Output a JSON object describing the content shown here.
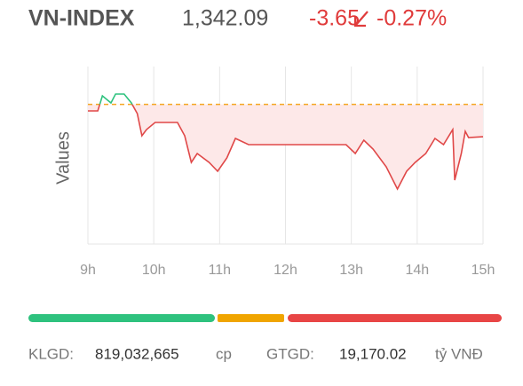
{
  "header": {
    "title": "VN-INDEX",
    "price": "1,342.09",
    "change": "-3.65",
    "change_percent": "-0.27%"
  },
  "chart_data": {
    "type": "line",
    "y_label": "Values",
    "x": [
      9.0,
      9.15,
      9.22,
      9.35,
      9.42,
      9.55,
      9.66,
      9.75,
      9.82,
      9.89,
      10.02,
      10.36,
      10.47,
      10.57,
      10.66,
      10.84,
      10.97,
      11.11,
      11.24,
      11.44,
      12.92,
      13.06,
      13.19,
      13.33,
      13.53,
      13.7,
      13.84,
      13.97,
      14.13,
      14.27,
      14.4,
      14.54,
      14.57,
      14.67,
      14.73,
      14.78,
      15.0
    ],
    "series": [
      {
        "name": "VN-INDEX",
        "color": "#e04848",
        "color_above": "#2ec27e",
        "values": [
          1345.0,
          1345.0,
          1346.7,
          1345.9,
          1346.9,
          1346.9,
          1345.9,
          1344.7,
          1342.2,
          1342.9,
          1343.7,
          1343.7,
          1342.2,
          1339.2,
          1340.2,
          1339.2,
          1338.2,
          1339.7,
          1341.9,
          1341.2,
          1341.2,
          1340.2,
          1341.7,
          1340.7,
          1338.7,
          1336.2,
          1338.2,
          1339.2,
          1340.2,
          1341.9,
          1341.2,
          1342.9,
          1337.2,
          1340.2,
          1342.7,
          1342.0,
          1342.09
        ]
      }
    ],
    "reference": 1345.74,
    "reference_color": "#f5a623",
    "area_color": "#fde8e8",
    "xlim": [
      9,
      15
    ],
    "ylim": [
      1330,
      1350
    ],
    "xticks": [
      {
        "value": 9,
        "label": "9h"
      },
      {
        "value": 10,
        "label": "10h"
      },
      {
        "value": 11,
        "label": "11h"
      },
      {
        "value": 12,
        "label": "12h"
      },
      {
        "value": 13,
        "label": "13h"
      },
      {
        "value": 14,
        "label": "14h"
      },
      {
        "value": 15,
        "label": "15h"
      }
    ],
    "grid": true
  },
  "footer": {
    "volume_label": "KLGD:",
    "volume": "819,032,665",
    "volume_unit": "cp",
    "value_label": "GTGD:",
    "value": "19,170.02",
    "value_unit": "tỷ VNĐ"
  }
}
